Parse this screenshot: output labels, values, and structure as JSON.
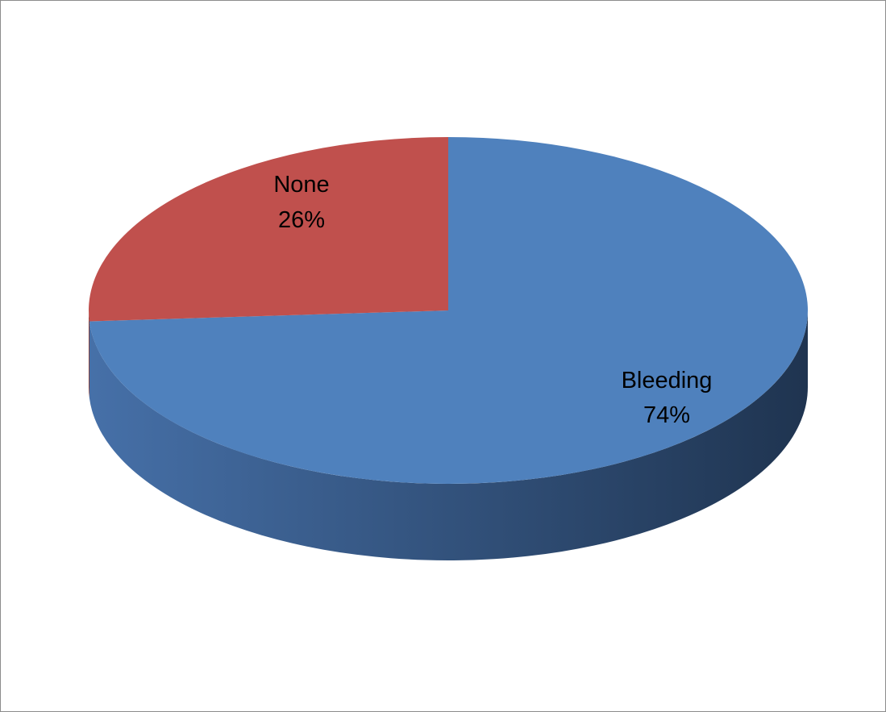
{
  "chart_data": {
    "type": "pie",
    "title": "",
    "legend": "none",
    "slices": [
      {
        "label": "Bleeding",
        "value": 74,
        "percent_label": "74%",
        "color": "#4F81BD",
        "side_dark": "#1F3450",
        "side_light": "#4670A8"
      },
      {
        "label": "None",
        "value": 26,
        "percent_label": "26%",
        "color": "#C0504D",
        "side_dark": "#7A2E2C",
        "side_light": "#A9403E"
      }
    ]
  }
}
